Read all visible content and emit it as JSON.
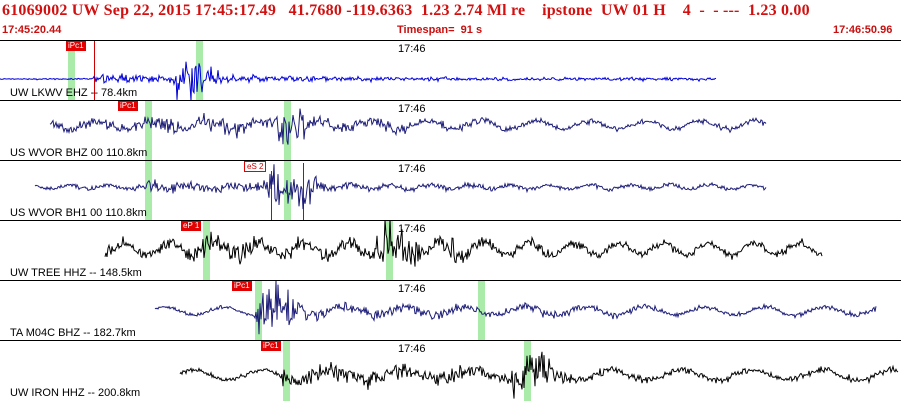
{
  "header": {
    "title": "61069002 UW Sep 22, 2015 17:45:17.49   41.7680 -119.6363  1.23 2.74 Ml re    ipstone  UW 01 H    4  -  - ---  1.23 0.00",
    "start_time": "17:45:20.44",
    "timespan": "Timespan=  91 s",
    "end_time": "17:46:50.96"
  },
  "colors": {
    "header_text": "#c81010",
    "trace_blue": "#0000d8",
    "trace_navy": "#1c1c78",
    "trace_black": "#000000",
    "pick_red": "#e30000",
    "window_green": "#9be89b"
  },
  "panels": [
    {
      "channel": "UW LKWV EHZ -- 78.4km",
      "time_mark": "17:46",
      "pick_label": "iPc1",
      "pick_style": "filled",
      "trace_color": "#0000d8"
    },
    {
      "channel": "US WVOR BHZ 00 110.8km",
      "time_mark": "17:46",
      "pick_label": "iPc1",
      "pick_style": "filled",
      "trace_color": "#1c1c78"
    },
    {
      "channel": "US WVOR BH1 00 110.8km",
      "time_mark": "17:46",
      "pick_label": "eS 2",
      "pick_style": "outline",
      "trace_color": "#1c1c78"
    },
    {
      "channel": "UW TREE HHZ -- 148.5km",
      "time_mark": "17:46",
      "pick_label": "eP 1",
      "pick_style": "filled",
      "trace_color": "#000000"
    },
    {
      "channel": "TA M04C BHZ -- 182.7km",
      "time_mark": "17:46",
      "pick_label": "iPc1",
      "pick_style": "filled",
      "trace_color": "#1c1c78"
    },
    {
      "channel": "UW IRON HHZ -- 200.8km",
      "time_mark": "17:46",
      "pick_label": "iPc1",
      "pick_style": "filled",
      "trace_color": "#000000"
    }
  ]
}
